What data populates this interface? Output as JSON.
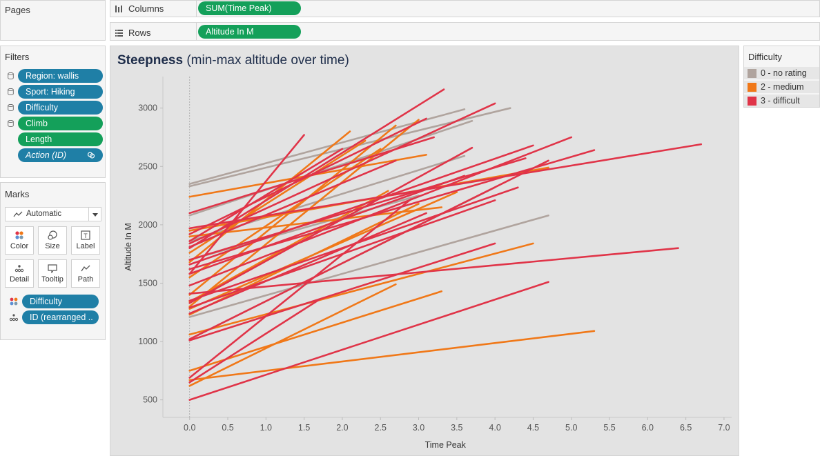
{
  "pages": {
    "title": "Pages"
  },
  "columns_shelf": {
    "label": "Columns",
    "pill": "SUM(Time Peak)"
  },
  "rows_shelf": {
    "label": "Rows",
    "pill": "Altitude In M"
  },
  "filters": {
    "title": "Filters",
    "items": [
      {
        "label": "Region: wallis",
        "color": "blue",
        "icon": "database-icon"
      },
      {
        "label": "Sport: Hiking",
        "color": "blue",
        "icon": "database-icon"
      },
      {
        "label": "Difficulty",
        "color": "blue",
        "icon": "database-icon"
      },
      {
        "label": "Climb",
        "color": "green",
        "icon": "database-icon"
      },
      {
        "label": "Length",
        "color": "green",
        "icon": ""
      },
      {
        "label": "Action (ID)",
        "color": "blue",
        "icon": ""
      }
    ]
  },
  "marks": {
    "title": "Marks",
    "type_select": "Automatic",
    "buttons": [
      "Color",
      "Size",
      "Label",
      "Detail",
      "Tooltip",
      "Path"
    ],
    "fields": [
      {
        "label": "Difficulty",
        "icon": "color-dots-icon"
      },
      {
        "label": "ID (rearranged ..",
        "icon": "detail-dots-icon"
      }
    ]
  },
  "legend": {
    "title": "Difficulty",
    "items": [
      {
        "label": "0 - no rating",
        "color": "#b0a49e"
      },
      {
        "label": "2 - medium",
        "color": "#f07818"
      },
      {
        "label": "3 - difficult",
        "color": "#e03448"
      }
    ]
  },
  "viz": {
    "title_bold": "Steepness",
    "title_rest": " (min-max altitude over time)"
  },
  "chart_data": {
    "type": "line",
    "xlabel": "Time Peak",
    "ylabel": "Altitude In M",
    "xlim": [
      -0.35,
      7.1
    ],
    "ylim": [
      350,
      3270
    ],
    "x_ticks": [
      "0.0",
      "0.5",
      "1.0",
      "1.5",
      "2.0",
      "2.5",
      "3.0",
      "3.5",
      "4.0",
      "4.5",
      "5.0",
      "5.5",
      "6.0",
      "6.5",
      "7.0"
    ],
    "y_ticks": [
      "500",
      "1000",
      "1500",
      "2000",
      "2500",
      "3000"
    ],
    "grid": false,
    "series_colors": {
      "0 - no rating": "#b0a49e",
      "2 - medium": "#f07818",
      "3 - difficult": "#e03448"
    },
    "segments": [
      {
        "cat": "3 - difficult",
        "x": [
          0,
          3.33
        ],
        "y": [
          1800,
          3160
        ]
      },
      {
        "cat": "3 - difficult",
        "x": [
          0,
          4.0
        ],
        "y": [
          1840,
          3040
        ]
      },
      {
        "cat": "3 - difficult",
        "x": [
          0,
          6.7
        ],
        "y": [
          1970,
          2690
        ]
      },
      {
        "cat": "3 - difficult",
        "x": [
          0,
          1.5
        ],
        "y": [
          1580,
          2770
        ]
      },
      {
        "cat": "3 - difficult",
        "x": [
          0,
          3.1
        ],
        "y": [
          1920,
          2910
        ]
      },
      {
        "cat": "3 - difficult",
        "x": [
          0,
          5.3
        ],
        "y": [
          1620,
          2640
        ]
      },
      {
        "cat": "3 - difficult",
        "x": [
          0,
          5.0
        ],
        "y": [
          1480,
          2750
        ]
      },
      {
        "cat": "3 - difficult",
        "x": [
          0,
          3.7
        ],
        "y": [
          1330,
          2660
        ]
      },
      {
        "cat": "3 - difficult",
        "x": [
          0,
          4.5
        ],
        "y": [
          1660,
          2680
        ]
      },
      {
        "cat": "3 - difficult",
        "x": [
          0,
          4.4
        ],
        "y": [
          1700,
          2570
        ]
      },
      {
        "cat": "3 - difficult",
        "x": [
          0,
          2.7
        ],
        "y": [
          1810,
          2550
        ]
      },
      {
        "cat": "3 - difficult",
        "x": [
          0,
          3.2
        ],
        "y": [
          2100,
          2750
        ]
      },
      {
        "cat": "3 - difficult",
        "x": [
          0,
          4.7
        ],
        "y": [
          1020,
          2550
        ]
      },
      {
        "cat": "3 - difficult",
        "x": [
          0,
          4.3
        ],
        "y": [
          1350,
          2320
        ]
      },
      {
        "cat": "3 - difficult",
        "x": [
          0,
          4.0
        ],
        "y": [
          1290,
          2210
        ]
      },
      {
        "cat": "3 - difficult",
        "x": [
          0,
          3.1
        ],
        "y": [
          1240,
          2100
        ]
      },
      {
        "cat": "3 - difficult",
        "x": [
          0,
          6.4
        ],
        "y": [
          1410,
          1800
        ]
      },
      {
        "cat": "3 - difficult",
        "x": [
          0,
          4.0
        ],
        "y": [
          1010,
          1840
        ]
      },
      {
        "cat": "3 - difficult",
        "x": [
          0,
          2.9
        ],
        "y": [
          690,
          2220
        ]
      },
      {
        "cat": "3 - difficult",
        "x": [
          0,
          4.7
        ],
        "y": [
          500,
          1510
        ]
      },
      {
        "cat": "3 - difficult",
        "x": [
          0,
          1.7
        ],
        "y": [
          650,
          1360
        ]
      },
      {
        "cat": "3 - difficult",
        "x": [
          0,
          2.0
        ],
        "y": [
          1860,
          2650
        ]
      },
      {
        "cat": "3 - difficult",
        "x": [
          0,
          3.6
        ],
        "y": [
          1580,
          2420
        ]
      },
      {
        "cat": "2 - medium",
        "x": [
          0,
          3.0
        ],
        "y": [
          1300,
          2900
        ]
      },
      {
        "cat": "2 - medium",
        "x": [
          0,
          2.7
        ],
        "y": [
          1400,
          2850
        ]
      },
      {
        "cat": "2 - medium",
        "x": [
          0,
          2.1
        ],
        "y": [
          1680,
          2800
        ]
      },
      {
        "cat": "2 - medium",
        "x": [
          0,
          2.3
        ],
        "y": [
          1760,
          2720
        ]
      },
      {
        "cat": "2 - medium",
        "x": [
          0,
          3.1
        ],
        "y": [
          2240,
          2600
        ]
      },
      {
        "cat": "2 - medium",
        "x": [
          0,
          4.7
        ],
        "y": [
          1950,
          2490
        ]
      },
      {
        "cat": "2 - medium",
        "x": [
          0,
          3.5
        ],
        "y": [
          1280,
          2280
        ]
      },
      {
        "cat": "2 - medium",
        "x": [
          0,
          3.3
        ],
        "y": [
          1900,
          2150
        ]
      },
      {
        "cat": "2 - medium",
        "x": [
          0,
          4.5
        ],
        "y": [
          1060,
          1840
        ]
      },
      {
        "cat": "2 - medium",
        "x": [
          0,
          2.7
        ],
        "y": [
          620,
          1490
        ]
      },
      {
        "cat": "2 - medium",
        "x": [
          0,
          3.3
        ],
        "y": [
          750,
          1430
        ]
      },
      {
        "cat": "2 - medium",
        "x": [
          0,
          5.3
        ],
        "y": [
          670,
          1090
        ]
      },
      {
        "cat": "2 - medium",
        "x": [
          0,
          2.5
        ],
        "y": [
          1550,
          2650
        ]
      },
      {
        "cat": "2 - medium",
        "x": [
          0,
          3.0
        ],
        "y": [
          1230,
          2180
        ]
      },
      {
        "cat": "2 - medium",
        "x": [
          0,
          2.6
        ],
        "y": [
          1340,
          2290
        ]
      },
      {
        "cat": "0 - no rating",
        "x": [
          0,
          3.6
        ],
        "y": [
          2350,
          2990
        ]
      },
      {
        "cat": "0 - no rating",
        "x": [
          0,
          4.2
        ],
        "y": [
          2330,
          3000
        ]
      },
      {
        "cat": "0 - no rating",
        "x": [
          0,
          3.7
        ],
        "y": [
          2080,
          2890
        ]
      },
      {
        "cat": "0 - no rating",
        "x": [
          0,
          3.6
        ],
        "y": [
          1860,
          2590
        ]
      },
      {
        "cat": "0 - no rating",
        "x": [
          0,
          4.7
        ],
        "y": [
          1210,
          2080
        ]
      },
      {
        "cat": "0 - no rating",
        "x": [
          0,
          4.0
        ],
        "y": [
          1020,
          2320
        ]
      },
      {
        "cat": "0 - no rating",
        "x": [
          0,
          3.0
        ],
        "y": [
          1700,
          2250
        ]
      }
    ]
  }
}
